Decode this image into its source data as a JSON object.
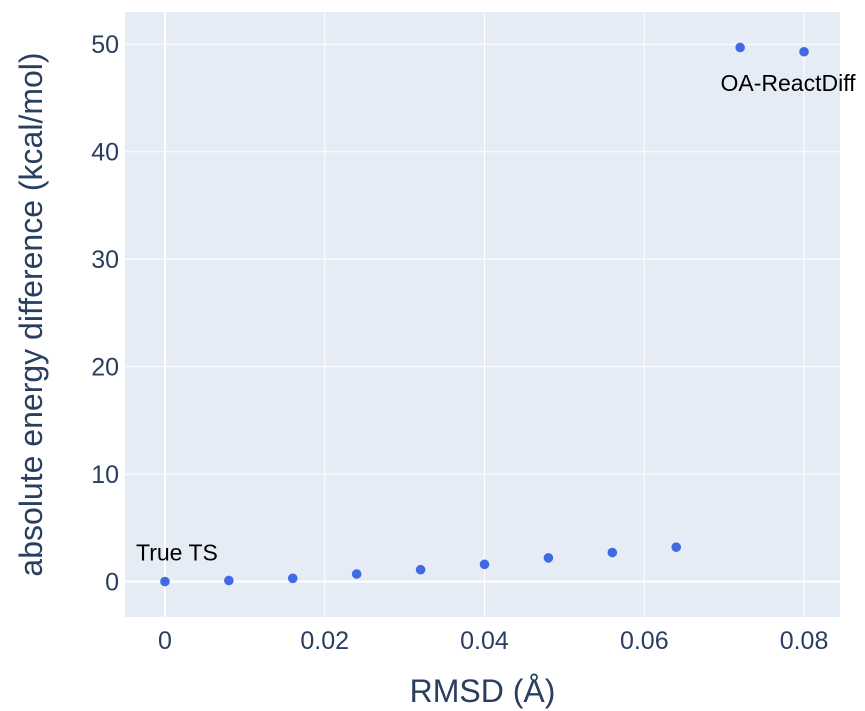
{
  "chart_data": {
    "type": "scatter",
    "xlabel": "RMSD (Å)",
    "ylabel": "absolute energy difference (kcal/mol)",
    "xlim": [
      -0.005,
      0.0845
    ],
    "ylim": [
      -3.3,
      53
    ],
    "x_ticks": [
      0,
      0.02,
      0.04,
      0.06,
      0.08
    ],
    "x_tick_labels": [
      "0",
      "0.02",
      "0.04",
      "0.06",
      "0.08"
    ],
    "y_ticks": [
      0,
      10,
      20,
      30,
      40,
      50
    ],
    "y_tick_labels": [
      "0",
      "10",
      "20",
      "30",
      "40",
      "50"
    ],
    "grid": true,
    "series": [
      {
        "x": [
          0,
          0.008,
          0.016,
          0.024,
          0.032,
          0.04,
          0.048,
          0.056,
          0.064,
          0.072,
          0.08
        ],
        "y": [
          0,
          0.1,
          0.3,
          0.7,
          1.1,
          1.6,
          2.2,
          2.7,
          3.2,
          49.7,
          49.3
        ]
      }
    ],
    "annotations": [
      {
        "text": "True TS",
        "x": 0,
        "y": 0
      },
      {
        "text": "OA-ReactDiff",
        "x": 0.08,
        "y": 49.3
      }
    ],
    "colors": {
      "plot_bg": "#e5ecf6",
      "grid": "#ffffff",
      "marker": "#4169e1",
      "text": "#2a3f5f"
    }
  }
}
